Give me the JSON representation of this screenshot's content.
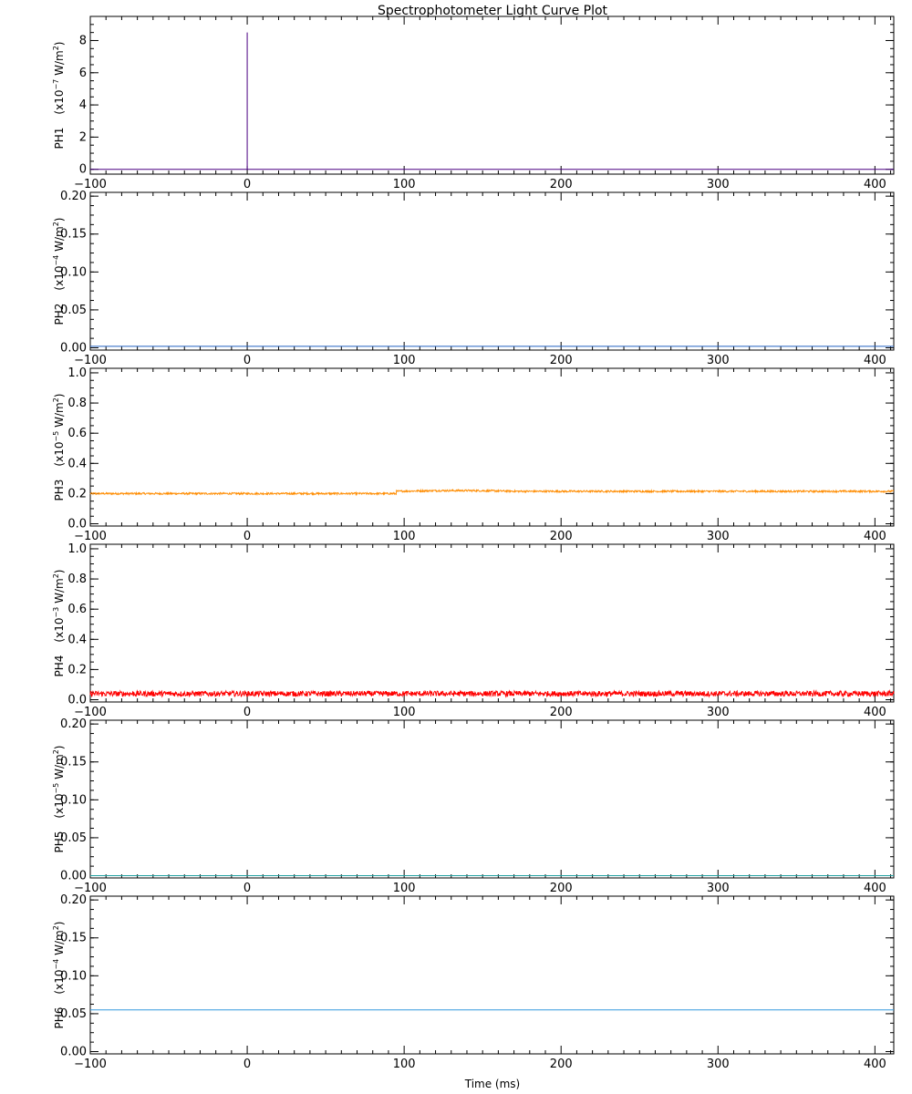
{
  "chart_data": {
    "type": "line",
    "title": "Spectrophotometer Light Curve Plot",
    "xlabel": "Time (ms)",
    "xlim": [
      -100,
      412
    ],
    "xticks": [
      -100,
      0,
      100,
      200,
      300,
      400
    ],
    "grid": false,
    "panels": [
      {
        "name": "PH1",
        "unit_prefix": "(x10",
        "unit_exp": "−7",
        "unit_suffix": " W/m",
        "unit_sq": "2",
        "unit_close": ")",
        "ylim": [
          -0.3,
          9.5
        ],
        "yticks": [
          0,
          2,
          4,
          6,
          8
        ],
        "ytick_labels": [
          "0",
          "2",
          "4",
          "6",
          "8"
        ],
        "color": "#4b0082",
        "series": {
          "kind": "spike",
          "baseline": 0,
          "spike_x": 0,
          "spike_y": 8.5,
          "noise": 0
        }
      },
      {
        "name": "PH2",
        "unit_prefix": "(x10",
        "unit_exp": "−4",
        "unit_suffix": " W/m",
        "unit_sq": "2",
        "unit_close": ")",
        "ylim": [
          -0.003,
          0.205
        ],
        "yticks": [
          0,
          0.05,
          0.1,
          0.15,
          0.2
        ],
        "ytick_labels": [
          "0.00",
          "0.05",
          "0.10",
          "0.15",
          "0.20"
        ],
        "color": "#2060c0",
        "series": {
          "kind": "flat",
          "baseline": 0.002,
          "noise": 0
        }
      },
      {
        "name": "PH3",
        "unit_prefix": "(x10",
        "unit_exp": "−5",
        "unit_suffix": " W/m",
        "unit_sq": "2",
        "unit_close": ")",
        "ylim": [
          -0.015,
          1.03
        ],
        "yticks": [
          0,
          0.2,
          0.4,
          0.6,
          0.8,
          1.0
        ],
        "ytick_labels": [
          "0.0",
          "0.2",
          "0.4",
          "0.6",
          "0.8",
          "1.0"
        ],
        "color": "#ff8c00",
        "series": {
          "kind": "step",
          "baseline": 0.2,
          "step_x": 95,
          "step_y": 0.215,
          "noise": 0.006
        }
      },
      {
        "name": "PH4",
        "unit_prefix": "(x10",
        "unit_exp": "−3",
        "unit_suffix": " W/m",
        "unit_sq": "2",
        "unit_close": ")",
        "ylim": [
          -0.015,
          1.03
        ],
        "yticks": [
          0,
          0.2,
          0.4,
          0.6,
          0.8,
          1.0
        ],
        "ytick_labels": [
          "0.0",
          "0.2",
          "0.4",
          "0.6",
          "0.8",
          "1.0"
        ],
        "color": "#ff0000",
        "series": {
          "kind": "flat",
          "baseline": 0.04,
          "noise": 0.018
        }
      },
      {
        "name": "PH5",
        "unit_prefix": "(x10",
        "unit_exp": "−5",
        "unit_suffix": " W/m",
        "unit_sq": "2",
        "unit_close": ")",
        "ylim": [
          -0.003,
          0.205
        ],
        "yticks": [
          0,
          0.05,
          0.1,
          0.15,
          0.2
        ],
        "ytick_labels": [
          "0.00",
          "0.05",
          "0.10",
          "0.15",
          "0.20"
        ],
        "color": "#20a0a0",
        "series": {
          "kind": "flat",
          "baseline": 0.0,
          "noise": 0
        }
      },
      {
        "name": "PH6",
        "unit_prefix": "(x10",
        "unit_exp": "−4",
        "unit_suffix": " W/m",
        "unit_sq": "2",
        "unit_close": ")",
        "ylim": [
          -0.003,
          0.205
        ],
        "yticks": [
          0,
          0.05,
          0.1,
          0.15,
          0.2
        ],
        "ytick_labels": [
          "0.00",
          "0.05",
          "0.10",
          "0.15",
          "0.20"
        ],
        "color": "#3399dd",
        "series": {
          "kind": "flat",
          "baseline": 0.055,
          "noise": 0
        }
      }
    ]
  }
}
